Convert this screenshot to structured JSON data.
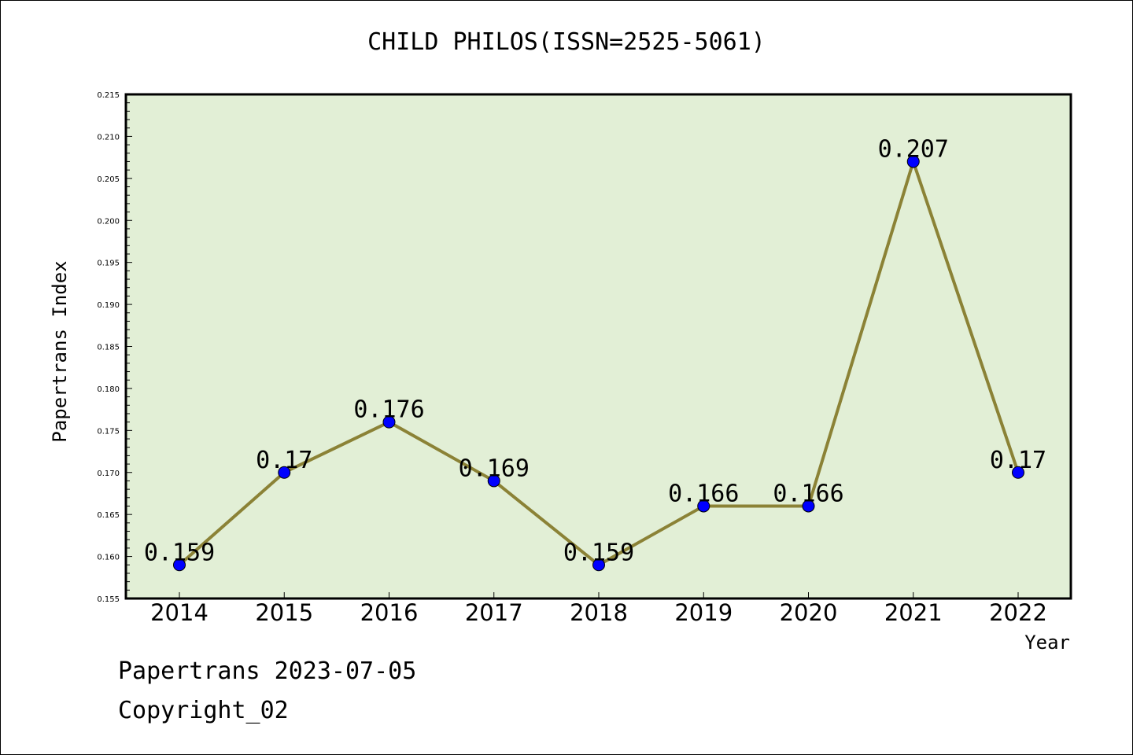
{
  "title": "CHILD PHILOS(ISSN=2525-5061)",
  "footer": {
    "line1": "Papertrans 2023-07-05",
    "line2": "Copyright_02"
  },
  "chart_data": {
    "type": "line",
    "title": "CHILD PHILOS(ISSN=2525-5061)",
    "xlabel": "Year",
    "ylabel": "Papertrans Index",
    "categories": [
      "2014",
      "2015",
      "2016",
      "2017",
      "2018",
      "2019",
      "2020",
      "2021",
      "2022"
    ],
    "values": [
      0.159,
      0.17,
      0.176,
      0.169,
      0.159,
      0.166,
      0.166,
      0.207,
      0.17
    ],
    "data_labels": [
      "0.159",
      "0.17",
      "0.176",
      "0.169",
      "0.159",
      "0.166",
      "0.166",
      "0.207",
      "0.17"
    ],
    "ylim": [
      0.155,
      0.215
    ],
    "yticks": [
      "0.155",
      "0.160",
      "0.165",
      "0.170",
      "0.175",
      "0.180",
      "0.185",
      "0.190",
      "0.195",
      "0.200",
      "0.205",
      "0.210",
      "0.215"
    ],
    "grid": false,
    "legend": "none",
    "colors": {
      "plot_background": "#e2efd6",
      "line": "#8b8236",
      "marker": "#0000ff"
    }
  }
}
